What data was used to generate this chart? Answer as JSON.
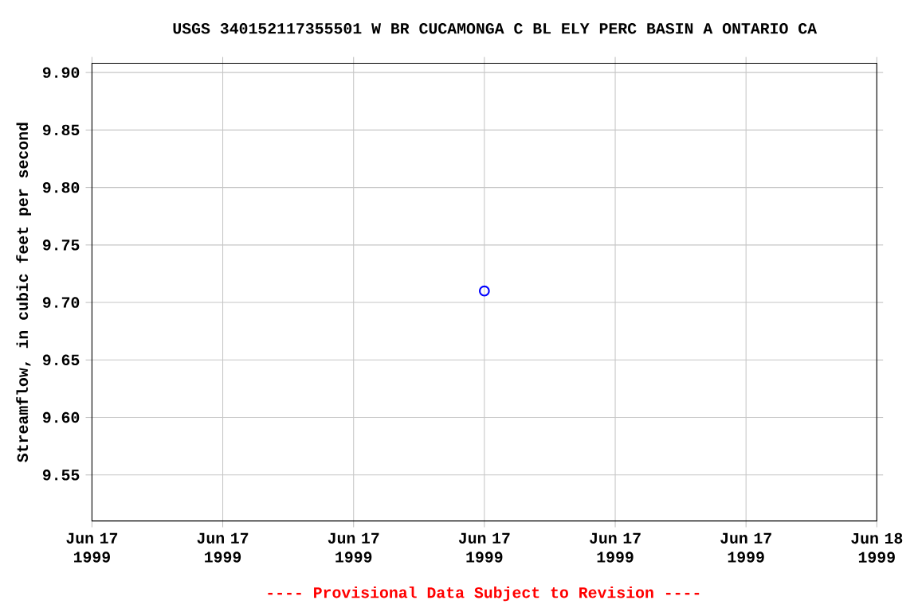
{
  "chart_data": {
    "type": "scatter",
    "title": "USGS 340152117355501 W BR CUCAMONGA C BL ELY PERC BASIN A ONTARIO CA",
    "ylabel": "Streamflow, in cubic feet per second",
    "x": [
      "1999-06-17T12:00"
    ],
    "series": [
      {
        "color": "#0000ff",
        "values": [
          9.71
        ]
      }
    ],
    "marker": "circle",
    "grid": true,
    "xlim": [
      "1999-06-17T00:00",
      "1999-06-18T00:00"
    ],
    "xticks": [
      {
        "value": "1999-06-17T00:00",
        "label": "Jun 17 1999"
      },
      {
        "value": "1999-06-17T04:00",
        "label": "Jun 17 1999"
      },
      {
        "value": "1999-06-17T08:00",
        "label": "Jun 17 1999"
      },
      {
        "value": "1999-06-17T12:00",
        "label": "Jun 17 1999"
      },
      {
        "value": "1999-06-17T16:00",
        "label": "Jun 17 1999"
      },
      {
        "value": "1999-06-17T20:00",
        "label": "Jun 17 1999"
      },
      {
        "value": "1999-06-18T00:00",
        "label": "Jun 18 1999"
      }
    ],
    "ylim": [
      9.51,
      9.908
    ],
    "yticks": [
      9.55,
      {
        "value": 9.6,
        "label": "9.60"
      },
      9.65,
      {
        "value": 9.7,
        "label": "9.70"
      },
      9.75,
      {
        "value": 9.8,
        "label": "9.80"
      },
      9.85,
      {
        "value": 9.9,
        "label": "9.90"
      }
    ],
    "annotations": [
      "---- Provisional Data Subject to Revision ----"
    ]
  }
}
